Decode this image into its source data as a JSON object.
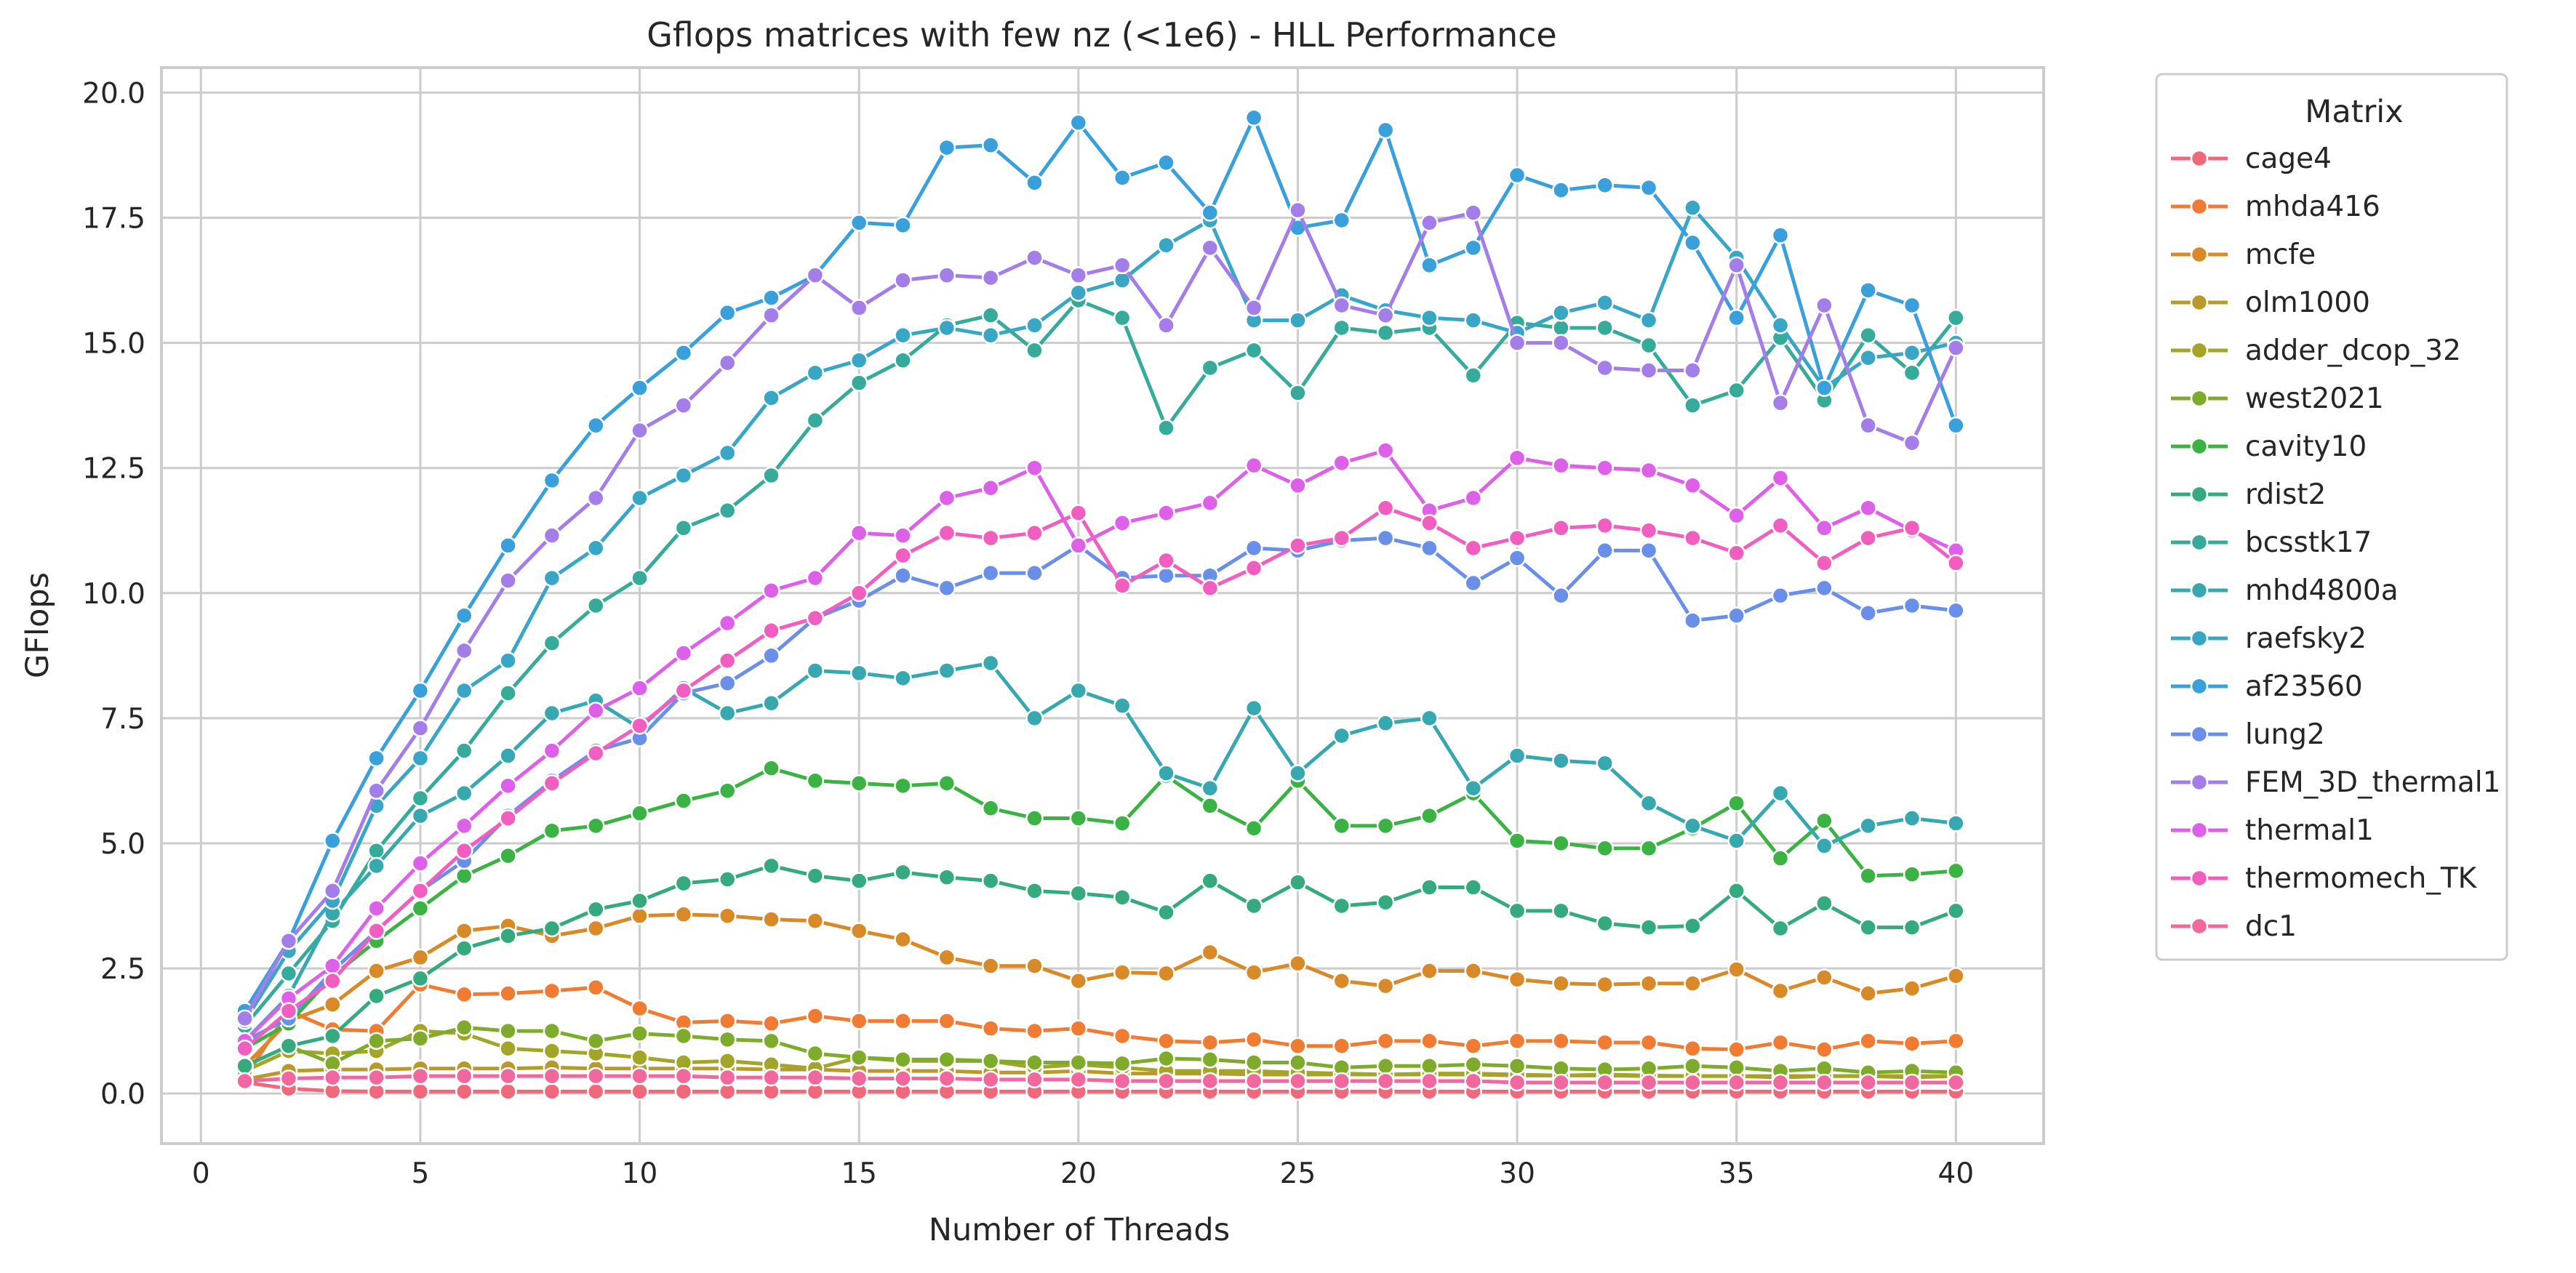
{
  "chart_data": {
    "type": "line",
    "title": "Gflops matrices with few nz (<1e6) - HLL Performance",
    "xlabel": "Number of Threads",
    "ylabel": "GFlops",
    "xlim": [
      -0.9,
      42.0
    ],
    "ylim": [
      -1.0,
      20.5
    ],
    "xticks": [
      0,
      5,
      10,
      15,
      20,
      25,
      30,
      35,
      40
    ],
    "xtick_labels": [
      "0",
      "5",
      "10",
      "15",
      "20",
      "25",
      "30",
      "35",
      "40"
    ],
    "yticks": [
      0.0,
      2.5,
      5.0,
      7.5,
      10.0,
      12.5,
      15.0,
      17.5,
      20.0
    ],
    "ytick_labels": [
      "0.0",
      "2.5",
      "5.0",
      "7.5",
      "10.0",
      "12.5",
      "15.0",
      "17.5",
      "20.0"
    ],
    "grid": true,
    "legend": {
      "title": "Matrix",
      "placement": "outside-right"
    },
    "x": [
      1,
      2,
      3,
      4,
      5,
      6,
      7,
      8,
      9,
      10,
      11,
      12,
      13,
      14,
      15,
      16,
      17,
      18,
      19,
      20,
      21,
      22,
      23,
      24,
      25,
      26,
      27,
      28,
      29,
      30,
      31,
      32,
      33,
      34,
      35,
      36,
      37,
      38,
      39,
      40
    ],
    "series": [
      {
        "name": "cage4",
        "color": "#f0697a",
        "values": [
          0.22,
          0.1,
          0.05,
          0.04,
          0.04,
          0.04,
          0.04,
          0.04,
          0.04,
          0.04,
          0.04,
          0.04,
          0.04,
          0.04,
          0.04,
          0.04,
          0.04,
          0.04,
          0.04,
          0.04,
          0.04,
          0.04,
          0.04,
          0.04,
          0.04,
          0.04,
          0.04,
          0.04,
          0.04,
          0.04,
          0.04,
          0.04,
          0.04,
          0.04,
          0.04,
          0.04,
          0.04,
          0.04,
          0.04,
          0.04
        ]
      },
      {
        "name": "mhda416",
        "color": "#f07b33",
        "values": [
          0.32,
          1.65,
          1.28,
          1.25,
          2.18,
          1.98,
          2.0,
          2.05,
          2.12,
          1.7,
          1.42,
          1.45,
          1.4,
          1.55,
          1.45,
          1.45,
          1.45,
          1.3,
          1.25,
          1.3,
          1.15,
          1.05,
          1.02,
          1.08,
          0.95,
          0.95,
          1.05,
          1.05,
          0.95,
          1.05,
          1.05,
          1.02,
          1.02,
          0.9,
          0.88,
          1.02,
          0.88,
          1.05,
          1.0,
          1.05
        ]
      },
      {
        "name": "mcfe",
        "color": "#d88928",
        "values": [
          0.55,
          1.45,
          1.78,
          2.45,
          2.72,
          3.25,
          3.35,
          3.15,
          3.3,
          3.55,
          3.58,
          3.55,
          3.48,
          3.45,
          3.25,
          3.08,
          2.72,
          2.55,
          2.55,
          2.25,
          2.42,
          2.4,
          2.82,
          2.42,
          2.6,
          2.25,
          2.15,
          2.45,
          2.45,
          2.28,
          2.2,
          2.18,
          2.2,
          2.2,
          2.48,
          2.05,
          2.32,
          2.0,
          2.1,
          2.35
        ]
      },
      {
        "name": "olm1000",
        "color": "#b89a2c",
        "values": [
          0.28,
          0.45,
          0.48,
          0.48,
          0.5,
          0.5,
          0.5,
          0.52,
          0.5,
          0.5,
          0.5,
          0.5,
          0.48,
          0.48,
          0.45,
          0.45,
          0.45,
          0.42,
          0.42,
          0.45,
          0.4,
          0.4,
          0.4,
          0.38,
          0.38,
          0.38,
          0.38,
          0.38,
          0.38,
          0.36,
          0.36,
          0.36,
          0.35,
          0.35,
          0.35,
          0.35,
          0.35,
          0.35,
          0.35,
          0.35
        ]
      },
      {
        "name": "adder_dcop_32",
        "color": "#a2a528",
        "values": [
          0.45,
          0.85,
          0.8,
          0.85,
          1.25,
          1.2,
          0.9,
          0.85,
          0.8,
          0.72,
          0.62,
          0.65,
          0.58,
          0.5,
          0.72,
          0.65,
          0.65,
          0.65,
          0.52,
          0.58,
          0.52,
          0.45,
          0.45,
          0.45,
          0.42,
          0.4,
          0.38,
          0.4,
          0.4,
          0.38,
          0.36,
          0.38,
          0.36,
          0.35,
          0.35,
          0.32,
          0.35,
          0.35,
          0.32,
          0.35
        ]
      },
      {
        "name": "west2021",
        "color": "#7eab2c",
        "values": [
          0.55,
          0.95,
          0.6,
          1.05,
          1.1,
          1.32,
          1.25,
          1.25,
          1.05,
          1.2,
          1.15,
          1.08,
          1.05,
          0.8,
          0.72,
          0.68,
          0.68,
          0.65,
          0.62,
          0.62,
          0.6,
          0.7,
          0.68,
          0.62,
          0.62,
          0.52,
          0.55,
          0.55,
          0.58,
          0.55,
          0.5,
          0.48,
          0.5,
          0.55,
          0.52,
          0.45,
          0.5,
          0.42,
          0.45,
          0.42
        ]
      },
      {
        "name": "cavity10",
        "color": "#3bb244",
        "values": [
          0.9,
          1.4,
          2.35,
          3.05,
          3.7,
          4.35,
          4.75,
          5.25,
          5.35,
          5.6,
          5.85,
          6.05,
          6.5,
          6.25,
          6.2,
          6.15,
          6.2,
          5.7,
          5.5,
          5.5,
          5.4,
          6.35,
          5.75,
          5.3,
          6.25,
          5.35,
          5.35,
          5.55,
          6.0,
          5.05,
          5.0,
          4.9,
          4.9,
          5.3,
          5.8,
          4.7,
          5.45,
          4.35,
          4.38,
          4.45
        ]
      },
      {
        "name": "rdist2",
        "color": "#35aa7e",
        "values": [
          0.55,
          0.95,
          1.15,
          1.95,
          2.3,
          2.9,
          3.15,
          3.3,
          3.68,
          3.85,
          4.2,
          4.28,
          4.55,
          4.35,
          4.25,
          4.42,
          4.32,
          4.25,
          4.05,
          4.0,
          3.92,
          3.62,
          4.25,
          3.75,
          4.22,
          3.75,
          3.82,
          4.12,
          4.12,
          3.65,
          3.65,
          3.4,
          3.32,
          3.35,
          4.05,
          3.3,
          3.8,
          3.32,
          3.32,
          3.65
        ]
      },
      {
        "name": "bcsstk17",
        "color": "#36ab9a",
        "values": [
          1.35,
          2.4,
          3.45,
          4.85,
          5.9,
          6.85,
          8.0,
          9.0,
          9.75,
          10.3,
          11.3,
          11.65,
          12.35,
          13.45,
          14.2,
          14.65,
          15.35,
          15.55,
          14.85,
          15.85,
          15.5,
          13.3,
          14.5,
          14.85,
          14.0,
          15.3,
          15.2,
          15.3,
          14.35,
          15.4,
          15.3,
          15.3,
          14.95,
          13.75,
          14.05,
          15.1,
          13.85,
          15.15,
          14.4,
          15.5
        ]
      },
      {
        "name": "mhd4800a",
        "color": "#38a8b0",
        "values": [
          1.05,
          1.95,
          3.6,
          4.55,
          5.55,
          6.0,
          6.75,
          7.6,
          7.85,
          7.3,
          8.1,
          7.6,
          7.8,
          8.45,
          8.4,
          8.3,
          8.45,
          8.6,
          7.5,
          8.05,
          7.75,
          6.4,
          6.1,
          7.7,
          6.4,
          7.15,
          7.4,
          7.5,
          6.1,
          6.75,
          6.65,
          6.6,
          5.8,
          5.35,
          5.05,
          6.0,
          4.95,
          5.35,
          5.5,
          5.4
        ]
      },
      {
        "name": "raefsky2",
        "color": "#38a6c4",
        "values": [
          1.45,
          2.85,
          3.85,
          5.75,
          6.7,
          8.05,
          8.65,
          10.3,
          10.9,
          11.9,
          12.35,
          12.8,
          13.9,
          14.4,
          14.65,
          15.15,
          15.3,
          15.15,
          15.35,
          16.0,
          16.25,
          16.95,
          17.45,
          15.45,
          15.45,
          15.95,
          15.65,
          15.5,
          15.45,
          15.2,
          15.6,
          15.8,
          15.45,
          17.7,
          16.7,
          15.35,
          14.1,
          14.7,
          14.8,
          15.0
        ]
      },
      {
        "name": "af23560",
        "color": "#3aa0db",
        "values": [
          1.65,
          3.05,
          5.05,
          6.7,
          8.05,
          9.55,
          10.95,
          12.25,
          13.35,
          14.1,
          14.8,
          15.6,
          15.9,
          16.35,
          17.4,
          17.35,
          18.9,
          18.95,
          18.2,
          19.4,
          18.3,
          18.6,
          17.6,
          19.5,
          17.3,
          17.45,
          19.25,
          16.55,
          16.9,
          18.35,
          18.05,
          18.15,
          18.1,
          17.0,
          15.5,
          17.15,
          14.1,
          16.05,
          15.75,
          13.35
        ]
      },
      {
        "name": "lung2",
        "color": "#6a8fe8",
        "values": [
          1.05,
          1.5,
          2.45,
          3.25,
          4.05,
          4.65,
          5.55,
          6.25,
          6.85,
          7.1,
          8.0,
          8.2,
          8.75,
          9.5,
          9.85,
          10.35,
          10.1,
          10.4,
          10.4,
          10.95,
          10.3,
          10.35,
          10.35,
          10.9,
          10.85,
          11.05,
          11.1,
          10.9,
          10.2,
          10.7,
          9.95,
          10.85,
          10.85,
          9.45,
          9.55,
          9.95,
          10.1,
          9.6,
          9.75,
          9.65
        ]
      },
      {
        "name": "FEM_3D_thermal1",
        "color": "#a47ee8",
        "values": [
          1.5,
          3.05,
          4.05,
          6.05,
          7.3,
          8.85,
          10.25,
          11.15,
          11.9,
          13.25,
          13.75,
          14.6,
          15.55,
          16.35,
          15.7,
          16.25,
          16.35,
          16.3,
          16.7,
          16.35,
          16.55,
          15.35,
          16.9,
          15.7,
          17.65,
          15.75,
          15.55,
          17.4,
          17.6,
          15.0,
          15.0,
          14.5,
          14.45,
          14.45,
          16.55,
          13.8,
          15.75,
          13.35,
          13.0,
          14.9
        ]
      },
      {
        "name": "thermal1",
        "color": "#dd61e8",
        "values": [
          1.05,
          1.9,
          2.55,
          3.7,
          4.6,
          5.35,
          6.15,
          6.85,
          7.65,
          8.1,
          8.8,
          9.4,
          10.05,
          10.3,
          11.2,
          11.15,
          11.9,
          12.1,
          12.5,
          10.95,
          11.4,
          11.6,
          11.8,
          12.55,
          12.15,
          12.6,
          12.85,
          11.65,
          11.9,
          12.7,
          12.55,
          12.5,
          12.45,
          12.15,
          11.55,
          12.3,
          11.3,
          11.7,
          11.25,
          10.85
        ]
      },
      {
        "name": "thermomech_TK",
        "color": "#f05fc0",
        "values": [
          0.9,
          1.65,
          2.25,
          3.25,
          4.05,
          4.85,
          5.5,
          6.2,
          6.8,
          7.35,
          8.05,
          8.65,
          9.25,
          9.5,
          10.0,
          10.75,
          11.2,
          11.1,
          11.2,
          11.6,
          10.15,
          10.65,
          10.1,
          10.5,
          10.95,
          11.1,
          11.7,
          11.4,
          10.9,
          11.1,
          11.3,
          11.35,
          11.25,
          11.1,
          10.8,
          11.35,
          10.6,
          11.1,
          11.3,
          10.6
        ]
      },
      {
        "name": "dc1",
        "color": "#f0689e",
        "values": [
          0.25,
          0.3,
          0.32,
          0.32,
          0.35,
          0.35,
          0.35,
          0.35,
          0.35,
          0.35,
          0.35,
          0.32,
          0.32,
          0.32,
          0.3,
          0.3,
          0.3,
          0.28,
          0.28,
          0.28,
          0.25,
          0.25,
          0.25,
          0.25,
          0.25,
          0.25,
          0.25,
          0.25,
          0.25,
          0.22,
          0.22,
          0.22,
          0.22,
          0.22,
          0.22,
          0.22,
          0.22,
          0.22,
          0.22,
          0.22
        ]
      }
    ]
  }
}
